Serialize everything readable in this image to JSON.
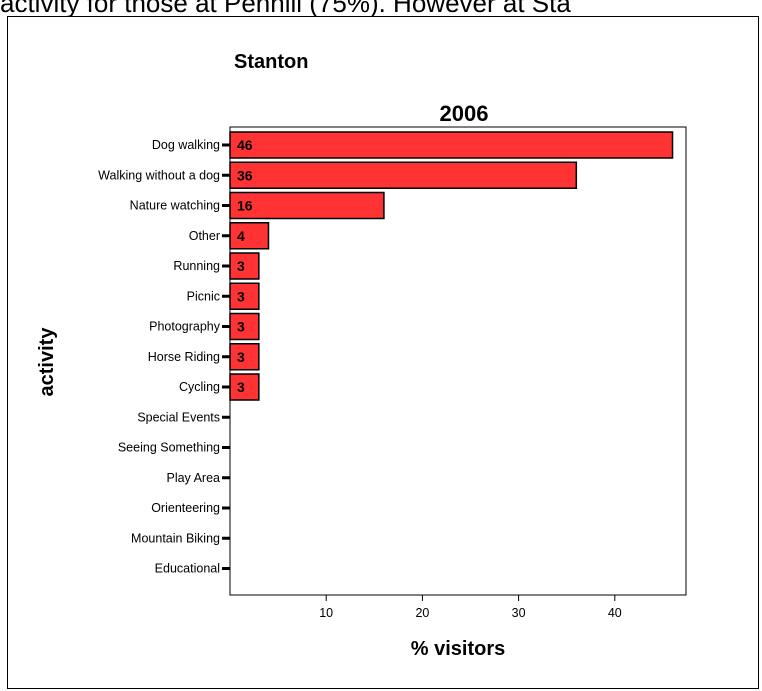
{
  "caption_fragment": "activity for those at Penhill (75%). However at Sta",
  "colors": {
    "bar_fill": "#ff3333",
    "bar_stroke": "#000000",
    "background": "#ffffff"
  },
  "chart_data": {
    "type": "bar",
    "orientation": "horizontal",
    "title": "Stanton",
    "subtitle": "2006",
    "xlabel": "% visitors",
    "ylabel": "activity",
    "categories": [
      "Dog walking",
      "Walking without a dog",
      "Nature watching",
      "Other",
      "Running",
      "Picnic",
      "Photography",
      "Horse Riding",
      "Cycling",
      "Special Events",
      "Seeing Something",
      "Play Area",
      "Orienteering",
      "Mountain Biking",
      "Educational"
    ],
    "values": [
      46,
      36,
      16,
      4,
      3,
      3,
      3,
      3,
      3,
      0,
      0,
      0,
      0,
      0,
      0
    ],
    "value_labels": [
      "46",
      "36",
      "16",
      "4",
      "3",
      "3",
      "3",
      "3",
      "3",
      "",
      "",
      "",
      "",
      "",
      ""
    ],
    "xticks": [
      10,
      20,
      30,
      40
    ],
    "xlim": [
      0,
      47
    ],
    "grid": false,
    "legend": "none"
  }
}
